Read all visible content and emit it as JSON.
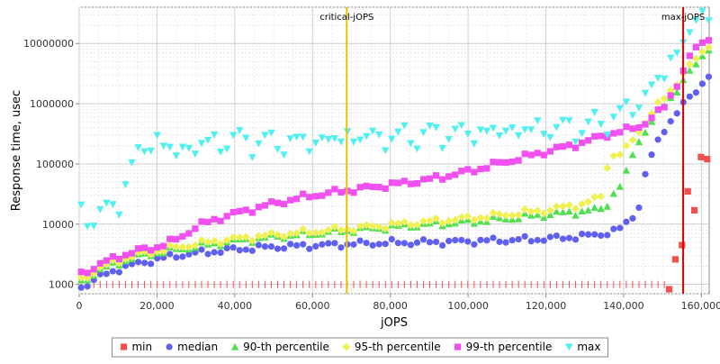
{
  "chart_data": {
    "type": "scatter",
    "xlabel": "jOPS",
    "ylabel": "Response time, usec",
    "xlim": [
      0,
      162000
    ],
    "ylim": [
      700,
      40000000
    ],
    "yscale": "log",
    "grid": true,
    "legend_position": "bottom",
    "x_ticks": [
      {
        "value": 0,
        "label": "0"
      },
      {
        "value": 20000,
        "label": "20,000"
      },
      {
        "value": 40000,
        "label": "40,000"
      },
      {
        "value": 60000,
        "label": "60,000"
      },
      {
        "value": 80000,
        "label": "80,000"
      },
      {
        "value": 100000,
        "label": "100,000"
      },
      {
        "value": 120000,
        "label": "120,000"
      },
      {
        "value": 140000,
        "label": "140,000"
      },
      {
        "value": 160000,
        "label": "160,000"
      }
    ],
    "y_ticks": [
      {
        "value": 1000,
        "label": "1000"
      },
      {
        "value": 10000,
        "label": "10000"
      },
      {
        "value": 100000,
        "label": "100000"
      },
      {
        "value": 1000000,
        "label": "1000000"
      },
      {
        "value": 10000000,
        "label": "10000000"
      }
    ],
    "markers": [
      {
        "name": "critical-jOPS",
        "label": "critical-jOPS",
        "x": 68800,
        "color": "#e6c300"
      },
      {
        "name": "max-jOPS",
        "label": "max-jOPS",
        "x": 155300,
        "color": "#e00000"
      }
    ],
    "series": [
      {
        "name": "min",
        "label": "min",
        "color": "#f05050",
        "symbol": "square",
        "points": [
          [
            151700,
            830
          ],
          [
            153300,
            2600
          ],
          [
            155000,
            4500
          ],
          [
            156500,
            35000
          ],
          [
            158200,
            17000
          ],
          [
            159900,
            130000
          ],
          [
            161500,
            120000
          ]
        ]
      },
      {
        "name": "median",
        "label": "median",
        "color": "#6060f0",
        "symbol": "circle",
        "anchors": [
          [
            500,
            900
          ],
          [
            3000,
            1100
          ],
          [
            6000,
            1400
          ],
          [
            10000,
            1800
          ],
          [
            15000,
            2200
          ],
          [
            20000,
            2600
          ],
          [
            25000,
            3000
          ],
          [
            30000,
            3300
          ],
          [
            40000,
            3800
          ],
          [
            50000,
            4200
          ],
          [
            60000,
            4400
          ],
          [
            70000,
            4700
          ],
          [
            80000,
            4900
          ],
          [
            90000,
            5000
          ],
          [
            100000,
            5200
          ],
          [
            110000,
            5400
          ],
          [
            120000,
            5700
          ],
          [
            130000,
            6300
          ],
          [
            135000,
            7000
          ],
          [
            138000,
            7800
          ],
          [
            140000,
            9000
          ],
          [
            142000,
            13000
          ],
          [
            144000,
            20000
          ],
          [
            146000,
            90000
          ],
          [
            150000,
            350000
          ],
          [
            155000,
            900000
          ],
          [
            158000,
            1500000
          ],
          [
            162000,
            3000000
          ]
        ]
      },
      {
        "name": "p90",
        "label": "90-th percentile",
        "color": "#50e050",
        "symbol": "triangle-up",
        "anchors": [
          [
            500,
            1100
          ],
          [
            5000,
            1700
          ],
          [
            10000,
            2300
          ],
          [
            15000,
            2900
          ],
          [
            20000,
            3400
          ],
          [
            30000,
            4300
          ],
          [
            40000,
            5300
          ],
          [
            50000,
            6200
          ],
          [
            60000,
            7000
          ],
          [
            70000,
            8000
          ],
          [
            80000,
            9000
          ],
          [
            90000,
            10000
          ],
          [
            100000,
            11000
          ],
          [
            110000,
            12500
          ],
          [
            120000,
            14500
          ],
          [
            130000,
            16500
          ],
          [
            135000,
            18000
          ],
          [
            137000,
            30000
          ],
          [
            140000,
            50000
          ],
          [
            143000,
            200000
          ],
          [
            148000,
            600000
          ],
          [
            153000,
            1500000
          ],
          [
            158000,
            4000000
          ],
          [
            162000,
            9000000
          ]
        ]
      },
      {
        "name": "p95",
        "label": "95-th percentile",
        "color": "#f0f050",
        "symbol": "diamond",
        "anchors": [
          [
            500,
            1200
          ],
          [
            5000,
            1800
          ],
          [
            10000,
            2500
          ],
          [
            15000,
            3100
          ],
          [
            20000,
            3600
          ],
          [
            30000,
            4700
          ],
          [
            40000,
            5700
          ],
          [
            50000,
            6600
          ],
          [
            60000,
            7500
          ],
          [
            70000,
            8500
          ],
          [
            80000,
            9700
          ],
          [
            90000,
            11000
          ],
          [
            100000,
            12500
          ],
          [
            110000,
            14500
          ],
          [
            120000,
            17000
          ],
          [
            130000,
            22000
          ],
          [
            135000,
            30000
          ],
          [
            136000,
            130000
          ],
          [
            140000,
            150000
          ],
          [
            143000,
            300000
          ],
          [
            148000,
            800000
          ],
          [
            153000,
            2000000
          ],
          [
            158000,
            5000000
          ],
          [
            162000,
            10000000
          ]
        ]
      },
      {
        "name": "p99",
        "label": "99-th percentile",
        "color": "#f050f0",
        "symbol": "square",
        "anchors": [
          [
            500,
            1500
          ],
          [
            5000,
            2100
          ],
          [
            10000,
            2900
          ],
          [
            15000,
            3600
          ],
          [
            20000,
            4200
          ],
          [
            25000,
            5500
          ],
          [
            30000,
            9000
          ],
          [
            35000,
            12000
          ],
          [
            40000,
            15000
          ],
          [
            50000,
            22000
          ],
          [
            60000,
            30000
          ],
          [
            70000,
            37000
          ],
          [
            80000,
            45000
          ],
          [
            90000,
            55000
          ],
          [
            100000,
            75000
          ],
          [
            110000,
            110000
          ],
          [
            120000,
            160000
          ],
          [
            130000,
            230000
          ],
          [
            135000,
            300000
          ],
          [
            140000,
            350000
          ],
          [
            145000,
            450000
          ],
          [
            150000,
            800000
          ],
          [
            155000,
            3000000
          ],
          [
            158000,
            8000000
          ],
          [
            162000,
            13000000
          ]
        ]
      },
      {
        "name": "max",
        "label": "max",
        "color": "#50f0f0",
        "symbol": "triangle-down",
        "anchors": [
          [
            500,
            15000
          ],
          [
            5000,
            13000
          ],
          [
            10000,
            22000
          ],
          [
            15000,
            150000
          ],
          [
            20000,
            250000
          ],
          [
            25000,
            150000
          ],
          [
            30000,
            200000
          ],
          [
            40000,
            250000
          ],
          [
            50000,
            220000
          ],
          [
            60000,
            230000
          ],
          [
            70000,
            280000
          ],
          [
            80000,
            270000
          ],
          [
            90000,
            300000
          ],
          [
            100000,
            320000
          ],
          [
            110000,
            350000
          ],
          [
            120000,
            380000
          ],
          [
            130000,
            400000
          ],
          [
            135000,
            500000
          ],
          [
            140000,
            700000
          ],
          [
            145000,
            1200000
          ],
          [
            150000,
            3000000
          ],
          [
            155000,
            10000000
          ],
          [
            158000,
            20000000
          ],
          [
            162000,
            35000000
          ]
        ]
      }
    ]
  }
}
